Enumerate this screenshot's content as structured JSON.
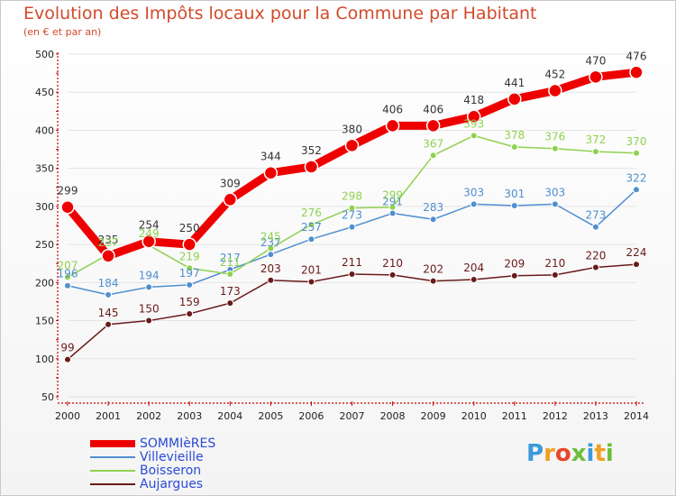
{
  "header": {
    "title": "Evolution des Impôts locaux pour la Commune par Habitant",
    "subtitle": "(en € et par an)"
  },
  "brand": {
    "logo_text": "Proxiti"
  },
  "colors": {
    "title": "#d24a2b",
    "axis": "#cc0000",
    "legend_text": "#2a4bd6"
  },
  "chart_data": {
    "type": "line",
    "title": "Evolution des Impôts locaux pour la Commune par Habitant",
    "subtitle": "(en € et par an)",
    "xlabel": "",
    "ylabel": "",
    "x": [
      "2000",
      "2001",
      "2002",
      "2003",
      "2004",
      "2005",
      "2006",
      "2007",
      "2008",
      "2009",
      "2010",
      "2011",
      "2012",
      "2013",
      "2014"
    ],
    "ylim": [
      50,
      500
    ],
    "yticks": [
      50,
      100,
      150,
      200,
      250,
      300,
      350,
      400,
      450,
      500
    ],
    "grid": true,
    "legend_position": "bottom-left",
    "series": [
      {
        "name": "SOMMIèRES",
        "color": "#ee0000",
        "line_width": 9,
        "marker_radius": 7,
        "values": [
          299,
          235,
          254,
          250,
          309,
          344,
          352,
          380,
          406,
          406,
          418,
          441,
          452,
          470,
          476
        ]
      },
      {
        "name": "Villevieille",
        "color": "#4f8fd0",
        "line_width": 1.5,
        "marker_radius": 3.5,
        "values": [
          196,
          184,
          194,
          197,
          217,
          237,
          257,
          273,
          291,
          283,
          303,
          301,
          303,
          273,
          322
        ]
      },
      {
        "name": "Boisseron",
        "color": "#8fd24e",
        "line_width": 1.5,
        "marker_radius": 3.5,
        "values": [
          207,
          237,
          249,
          219,
          211,
          245,
          276,
          298,
          299,
          367,
          393,
          378,
          376,
          372,
          370
        ]
      },
      {
        "name": "Aujargues",
        "color": "#6a1a1a",
        "line_width": 1.5,
        "marker_radius": 3.5,
        "values": [
          99,
          145,
          150,
          159,
          173,
          203,
          201,
          211,
          210,
          202,
          204,
          209,
          210,
          220,
          224
        ]
      }
    ]
  }
}
